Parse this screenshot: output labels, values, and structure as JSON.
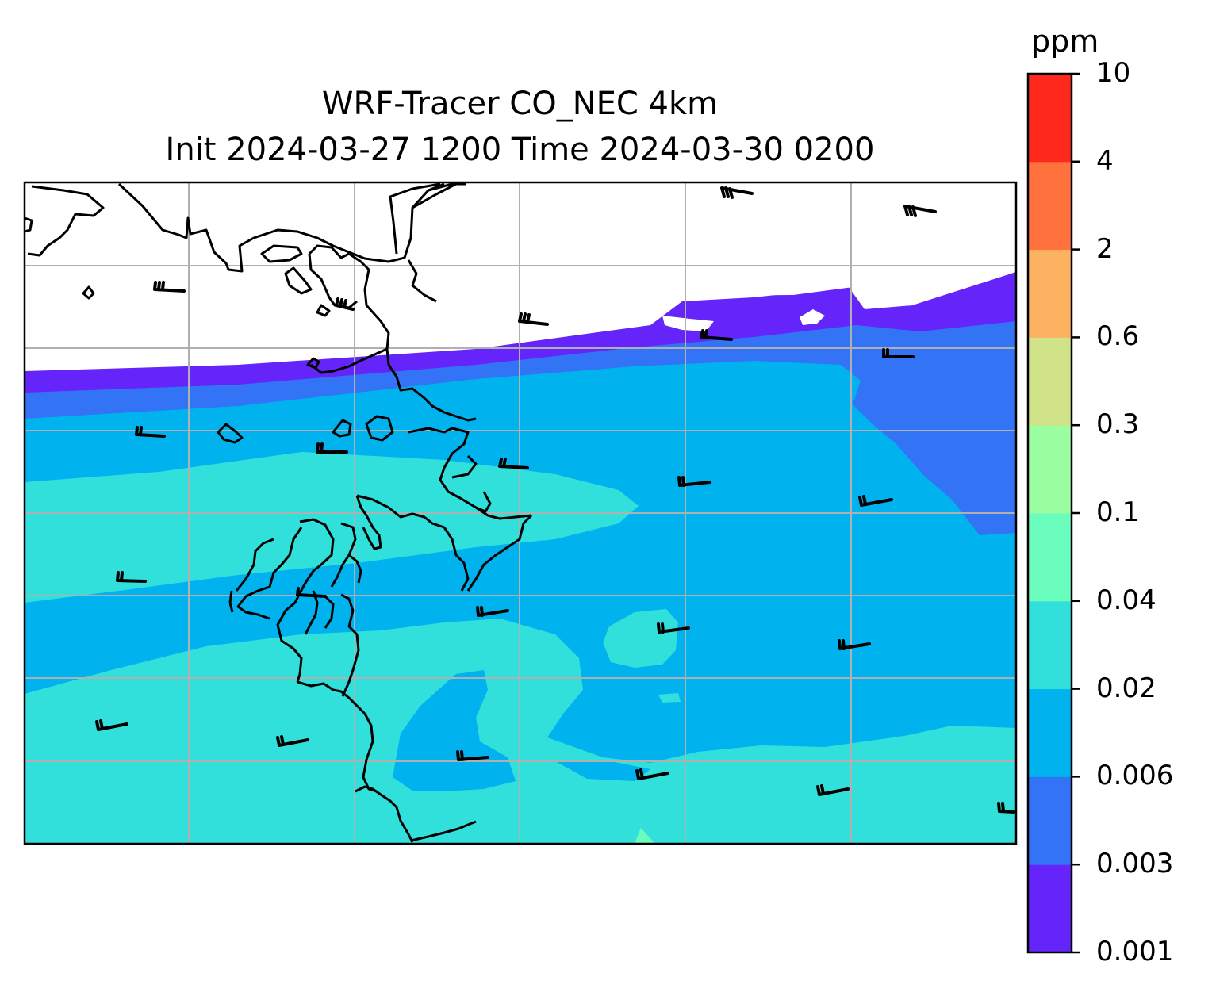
{
  "title": {
    "line1": "WRF-Tracer CO_NEC 4km",
    "line2": "Init 2024-03-27 1200 Time 2024-03-30 0200"
  },
  "colorbar": {
    "unit": "ppm",
    "ticks": [
      "0.001",
      "0.003",
      "0.006",
      "0.02",
      "0.04",
      "0.1",
      "0.3",
      "0.6",
      "2",
      "4",
      "10"
    ],
    "colors": [
      "#6424fa",
      "#3373f5",
      "#00b3ee",
      "#31e0da",
      "#6bfdbe",
      "#9bfea0",
      "#d1e388",
      "#fcb261",
      "#ff723d",
      "#ff281c"
    ]
  },
  "map_layers": {
    "fill": "filled concentration contours",
    "coastline": "black",
    "gridlines": "gray",
    "wind_barbs": "black"
  }
}
